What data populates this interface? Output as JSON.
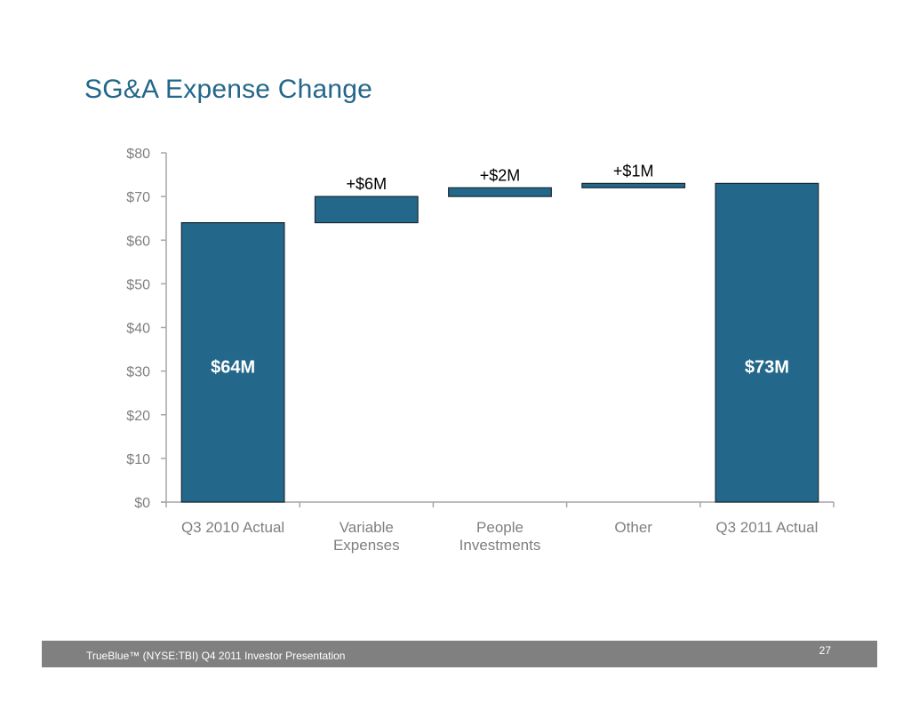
{
  "slide": {
    "title": "SG&A Expense Change",
    "footer_text": "TrueBlue™ (NYSE:TBI) Q4 2011 Investor Presentation",
    "page_number": "27"
  },
  "colors": {
    "title": "#23678a",
    "bar_fill": "#23678a",
    "bar_stroke": "#1a2b35",
    "axis": "#a6a6a6",
    "tick_label": "#7f7f7f",
    "footer_bg": "#808080"
  },
  "chart_data": {
    "type": "bar",
    "subtype": "waterfall",
    "title": "SG&A Expense Change",
    "xlabel": "",
    "ylabel": "",
    "ylim": [
      0,
      80
    ],
    "yticks": [
      0,
      10,
      20,
      30,
      40,
      50,
      60,
      70,
      80
    ],
    "ytick_labels": [
      "$0",
      "$10",
      "$20",
      "$30",
      "$40",
      "$50",
      "$60",
      "$70",
      "$80"
    ],
    "grid": false,
    "legend": "none",
    "categories": [
      [
        "Q3 2010 Actual"
      ],
      [
        "Variable",
        "Expenses"
      ],
      [
        "People",
        "Investments"
      ],
      [
        "Other"
      ],
      [
        "Q3 2011 Actual"
      ]
    ],
    "bars": [
      {
        "category": "Q3 2010 Actual",
        "kind": "total",
        "start": 0,
        "end": 64,
        "label": "$64M",
        "label_position": "inside"
      },
      {
        "category": "Variable Expenses",
        "kind": "delta",
        "start": 64,
        "end": 70,
        "label": "+$6M",
        "label_position": "above"
      },
      {
        "category": "People Investments",
        "kind": "delta",
        "start": 70,
        "end": 72,
        "label": "+$2M",
        "label_position": "above"
      },
      {
        "category": "Other",
        "kind": "delta",
        "start": 72,
        "end": 73,
        "label": "+$1M",
        "label_position": "above"
      },
      {
        "category": "Q3 2011 Actual",
        "kind": "total",
        "start": 0,
        "end": 73,
        "label": "$73M",
        "label_position": "inside"
      }
    ]
  }
}
